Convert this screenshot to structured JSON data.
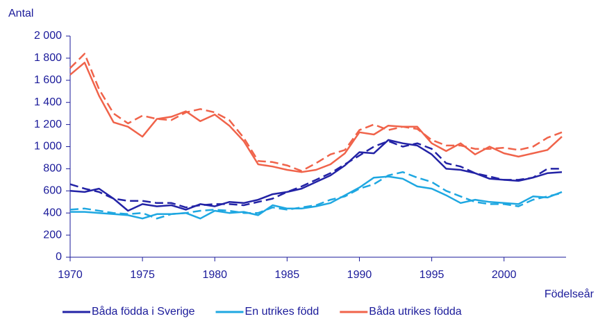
{
  "chart_data": {
    "type": "line",
    "y_label": "Antal",
    "x_label": "Födelseår",
    "x": [
      1970,
      1971,
      1972,
      1973,
      1974,
      1975,
      1976,
      1977,
      1978,
      1979,
      1980,
      1981,
      1982,
      1983,
      1984,
      1985,
      1986,
      1987,
      1988,
      1989,
      1990,
      1991,
      1992,
      1993,
      1994,
      1995,
      1996,
      1997,
      1998,
      1999,
      2000,
      2001,
      2002,
      2003,
      2004
    ],
    "xlim": [
      1970,
      2004
    ],
    "xticks": [
      1970,
      1975,
      1980,
      1985,
      1990,
      1995,
      2000
    ],
    "ylim": [
      0,
      2000
    ],
    "yticks": [
      0,
      200,
      400,
      600,
      800,
      {
        "value": 1000,
        "label": "1 000"
      },
      {
        "value": 1200,
        "label": "1 200"
      },
      {
        "value": 1400,
        "label": "1 400"
      },
      {
        "value": 1600,
        "label": "1 600"
      },
      {
        "value": 1800,
        "label": "1 800"
      },
      {
        "value": 2000,
        "label": "2 000"
      }
    ],
    "grid": false,
    "legend": "bottom",
    "series": [
      {
        "name": "Båda födda i Sverige",
        "color": "#2323a6",
        "dashed": false,
        "values": [
          600,
          590,
          620,
          530,
          420,
          480,
          460,
          470,
          430,
          480,
          460,
          500,
          490,
          520,
          570,
          590,
          620,
          680,
          740,
          830,
          950,
          940,
          1060,
          1030,
          1010,
          930,
          800,
          790,
          760,
          710,
          700,
          690,
          720,
          760,
          770
        ]
      },
      {
        "color": "#2323a6",
        "dashed": true,
        "values": [
          660,
          620,
          590,
          530,
          510,
          510,
          490,
          490,
          450,
          470,
          480,
          480,
          470,
          500,
          530,
          590,
          640,
          700,
          760,
          840,
          920,
          1000,
          1050,
          1000,
          1030,
          980,
          850,
          820,
          760,
          730,
          700,
          700,
          720,
          800,
          800
        ]
      },
      {
        "name": "En utrikes född",
        "color": "#1ea7e1",
        "dashed": false,
        "values": [
          410,
          410,
          400,
          390,
          380,
          350,
          390,
          390,
          400,
          350,
          420,
          400,
          410,
          380,
          470,
          440,
          440,
          460,
          490,
          560,
          630,
          720,
          730,
          710,
          640,
          620,
          560,
          490,
          520,
          500,
          490,
          480,
          550,
          540,
          590
        ]
      },
      {
        "color": "#1ea7e1",
        "dashed": true,
        "values": [
          430,
          440,
          420,
          400,
          390,
          400,
          350,
          390,
          400,
          420,
          430,
          420,
          400,
          400,
          450,
          430,
          450,
          470,
          520,
          550,
          620,
          660,
          740,
          770,
          720,
          680,
          600,
          550,
          500,
          480,
          480,
          460,
          520,
          550,
          580
        ]
      },
      {
        "name": "Båda utrikes födda",
        "color": "#f0634a",
        "dashed": false,
        "values": [
          1650,
          1760,
          1460,
          1220,
          1180,
          1090,
          1250,
          1270,
          1320,
          1230,
          1290,
          1190,
          1050,
          840,
          820,
          790,
          770,
          790,
          840,
          940,
          1130,
          1110,
          1190,
          1180,
          1180,
          1030,
          960,
          1030,
          930,
          1000,
          940,
          910,
          940,
          970,
          1090
        ]
      },
      {
        "color": "#f0634a",
        "dashed": true,
        "values": [
          1710,
          1840,
          1520,
          1300,
          1210,
          1280,
          1250,
          1240,
          1310,
          1340,
          1310,
          1240,
          1080,
          870,
          860,
          830,
          780,
          850,
          930,
          970,
          1150,
          1200,
          1150,
          1180,
          1160,
          1060,
          1010,
          1010,
          980,
          980,
          990,
          970,
          1000,
          1080,
          1130
        ]
      }
    ]
  }
}
